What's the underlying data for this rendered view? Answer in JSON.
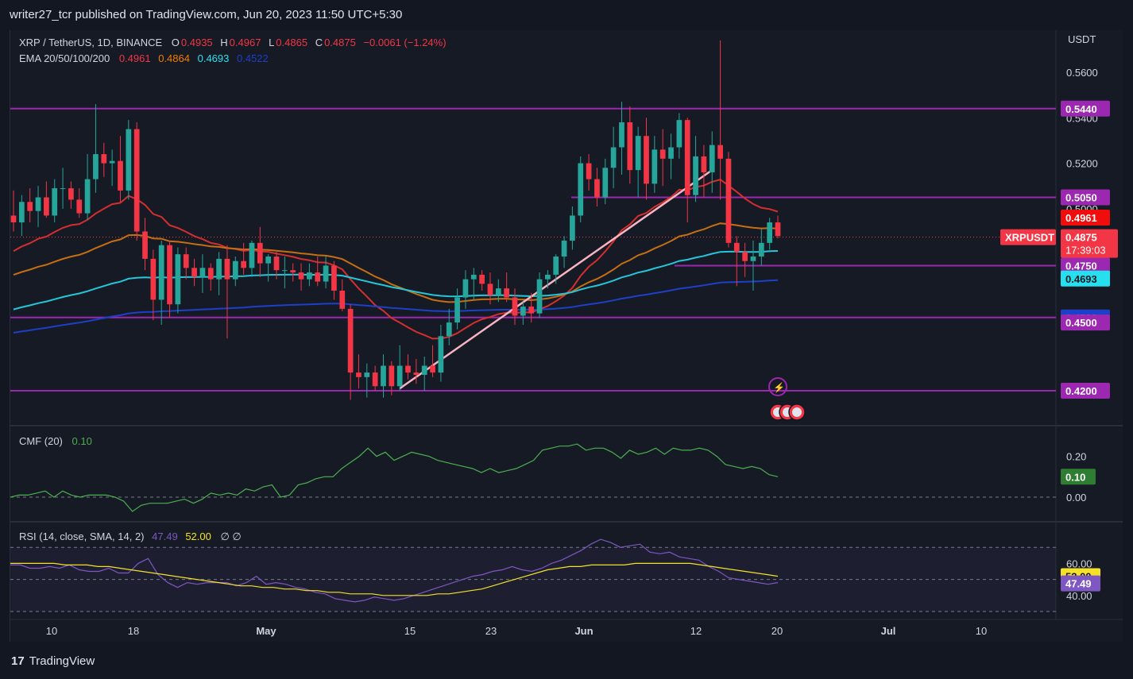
{
  "header": {
    "publish_line": "writer27_tcr published on TradingView.com, Jun 20, 2023 11:50 UTC+5:30"
  },
  "footer": {
    "logo_mark": "17",
    "brand": "TradingView"
  },
  "colors": {
    "up": "#26a69a",
    "down": "#f23645",
    "ema20": "#d32f2f",
    "ema50": "#c46f12",
    "ema100": "#26c6da",
    "ema200": "#1e3fc8",
    "hline": "#9c27b0",
    "cmf": "#4caf50",
    "rsi": "#7e57c2",
    "rsi_sma": "#f5e12a",
    "trend": "#f8b4c0"
  },
  "legend": {
    "symbol": "XRP / TetherUS, 1D, BINANCE",
    "o_label": "O",
    "o": "0.4935",
    "h_label": "H",
    "h": "0.4967",
    "l_label": "L",
    "l": "0.4865",
    "c_label": "C",
    "c": "0.4875",
    "change": "−0.0061 (−1.24%)",
    "ema_label": "EMA 20/50/100/200",
    "ema20": "0.4961",
    "ema50": "0.4864",
    "ema100": "0.4693",
    "ema200": "0.4522",
    "cmf_label": "CMF (20)",
    "cmf_value": "0.10",
    "rsi_label": "RSI (14, close, SMA, 14, 2)",
    "rsi_value": "47.49",
    "rsi_sma_value": "52.00",
    "rsi_extra": "∅ ∅"
  },
  "axis": {
    "currency": "USDT",
    "price_ticks": [
      "0.5600",
      "0.5400",
      "0.5200",
      "0.5000"
    ],
    "cmf_ticks": [
      "0.20",
      "0.00"
    ],
    "rsi_ticks": [
      "60.00",
      "40.00"
    ],
    "x_ticks": [
      "10",
      "18",
      "May",
      "15",
      "23",
      "Jun",
      "12",
      "20",
      "Jul",
      "10"
    ]
  },
  "price_labels": [
    {
      "text": "0.5440",
      "value": 0.544,
      "color": "#9c27b0",
      "fg": "#ffffff"
    },
    {
      "text": "0.5050",
      "value": 0.505,
      "color": "#9c27b0",
      "fg": "#ffffff"
    },
    {
      "text": "0.4961",
      "value": 0.4961,
      "color": "#f20d0d",
      "fg": "#ffffff"
    },
    {
      "text": "0.4864",
      "value": 0.4864,
      "color": "#f57c00",
      "fg": "#ffffff"
    },
    {
      "text": "0.4750",
      "value": 0.475,
      "color": "#9c27b0",
      "fg": "#ffffff"
    },
    {
      "text": "0.4693",
      "value": 0.4693,
      "color": "#26e0ef",
      "fg": "#131722"
    },
    {
      "text": "0.4522",
      "value": 0.4522,
      "color": "#1e3fc8",
      "fg": "#ffffff"
    },
    {
      "text": "0.4500",
      "value": 0.45,
      "color": "#9c27b0",
      "fg": "#ffffff"
    },
    {
      "text": "0.4200",
      "value": 0.42,
      "color": "#9c27b0",
      "fg": "#ffffff"
    }
  ],
  "last_price": {
    "symbol": "XRPUSDT",
    "price": "0.4875",
    "countdown": "17:39:03",
    "value": 0.4875
  },
  "cmf_badge": "0.10",
  "rsi_badges": [
    "52.00",
    "47.49"
  ],
  "chart_data": {
    "type": "candlestick",
    "symbol": "XRP / TetherUS",
    "timeframe": "1D",
    "exchange": "BINANCE",
    "x_tick_labels": [
      "10",
      "18",
      "May",
      "15",
      "23",
      "Jun",
      "12",
      "20",
      "Jul",
      "10"
    ],
    "price_range": [
      0.405,
      0.575
    ],
    "candles": [
      [
        0.497,
        0.508,
        0.49,
        0.494
      ],
      [
        0.494,
        0.506,
        0.488,
        0.503
      ],
      [
        0.503,
        0.509,
        0.494,
        0.499
      ],
      [
        0.499,
        0.51,
        0.492,
        0.505
      ],
      [
        0.505,
        0.512,
        0.496,
        0.497
      ],
      [
        0.497,
        0.513,
        0.494,
        0.509
      ],
      [
        0.509,
        0.518,
        0.5,
        0.509
      ],
      [
        0.509,
        0.512,
        0.5,
        0.504
      ],
      [
        0.504,
        0.509,
        0.496,
        0.498
      ],
      [
        0.498,
        0.524,
        0.495,
        0.513
      ],
      [
        0.513,
        0.546,
        0.507,
        0.524
      ],
      [
        0.524,
        0.529,
        0.514,
        0.52
      ],
      [
        0.52,
        0.526,
        0.51,
        0.521
      ],
      [
        0.521,
        0.532,
        0.503,
        0.508
      ],
      [
        0.508,
        0.539,
        0.504,
        0.535
      ],
      [
        0.535,
        0.538,
        0.486,
        0.49
      ],
      [
        0.49,
        0.496,
        0.473,
        0.478
      ],
      [
        0.478,
        0.482,
        0.451,
        0.46
      ],
      [
        0.46,
        0.486,
        0.449,
        0.484
      ],
      [
        0.484,
        0.486,
        0.452,
        0.458
      ],
      [
        0.458,
        0.483,
        0.454,
        0.48
      ],
      [
        0.48,
        0.483,
        0.469,
        0.474
      ],
      [
        0.474,
        0.478,
        0.466,
        0.47
      ],
      [
        0.47,
        0.48,
        0.463,
        0.474
      ],
      [
        0.474,
        0.476,
        0.464,
        0.469
      ],
      [
        0.469,
        0.481,
        0.462,
        0.478
      ],
      [
        0.478,
        0.484,
        0.443,
        0.469
      ],
      [
        0.469,
        0.479,
        0.466,
        0.477
      ],
      [
        0.477,
        0.485,
        0.471,
        0.474
      ],
      [
        0.474,
        0.486,
        0.47,
        0.485
      ],
      [
        0.485,
        0.492,
        0.47,
        0.476
      ],
      [
        0.476,
        0.48,
        0.468,
        0.479
      ],
      [
        0.479,
        0.481,
        0.469,
        0.473
      ],
      [
        0.473,
        0.479,
        0.465,
        0.473
      ],
      [
        0.473,
        0.476,
        0.468,
        0.472
      ],
      [
        0.472,
        0.476,
        0.464,
        0.469
      ],
      [
        0.469,
        0.476,
        0.466,
        0.472
      ],
      [
        0.472,
        0.479,
        0.466,
        0.468
      ],
      [
        0.468,
        0.479,
        0.465,
        0.475
      ],
      [
        0.475,
        0.477,
        0.46,
        0.464
      ],
      [
        0.464,
        0.469,
        0.455,
        0.456
      ],
      [
        0.456,
        0.458,
        0.416,
        0.428
      ],
      [
        0.428,
        0.436,
        0.421,
        0.426
      ],
      [
        0.426,
        0.432,
        0.417,
        0.428
      ],
      [
        0.428,
        0.431,
        0.42,
        0.422
      ],
      [
        0.422,
        0.436,
        0.417,
        0.431
      ],
      [
        0.431,
        0.433,
        0.418,
        0.422
      ],
      [
        0.422,
        0.44,
        0.42,
        0.431
      ],
      [
        0.431,
        0.436,
        0.425,
        0.428
      ],
      [
        0.428,
        0.434,
        0.423,
        0.427
      ],
      [
        0.427,
        0.435,
        0.42,
        0.431
      ],
      [
        0.431,
        0.44,
        0.426,
        0.428
      ],
      [
        0.428,
        0.449,
        0.424,
        0.444
      ],
      [
        0.444,
        0.456,
        0.44,
        0.45
      ],
      [
        0.45,
        0.465,
        0.447,
        0.461
      ],
      [
        0.461,
        0.473,
        0.456,
        0.469
      ],
      [
        0.469,
        0.474,
        0.46,
        0.471
      ],
      [
        0.471,
        0.473,
        0.464,
        0.467
      ],
      [
        0.467,
        0.472,
        0.458,
        0.462
      ],
      [
        0.462,
        0.469,
        0.459,
        0.465
      ],
      [
        0.465,
        0.472,
        0.459,
        0.461
      ],
      [
        0.461,
        0.465,
        0.449,
        0.453
      ],
      [
        0.453,
        0.459,
        0.449,
        0.457
      ],
      [
        0.457,
        0.463,
        0.45,
        0.454
      ],
      [
        0.454,
        0.472,
        0.452,
        0.469
      ],
      [
        0.469,
        0.473,
        0.465,
        0.471
      ],
      [
        0.471,
        0.48,
        0.467,
        0.479
      ],
      [
        0.479,
        0.488,
        0.474,
        0.486
      ],
      [
        0.486,
        0.501,
        0.482,
        0.497
      ],
      [
        0.497,
        0.523,
        0.494,
        0.52
      ],
      [
        0.52,
        0.524,
        0.508,
        0.513
      ],
      [
        0.513,
        0.518,
        0.501,
        0.505
      ],
      [
        0.505,
        0.522,
        0.502,
        0.518
      ],
      [
        0.518,
        0.536,
        0.509,
        0.527
      ],
      [
        0.527,
        0.547,
        0.515,
        0.538
      ],
      [
        0.538,
        0.545,
        0.511,
        0.517
      ],
      [
        0.517,
        0.536,
        0.505,
        0.532
      ],
      [
        0.532,
        0.54,
        0.504,
        0.511
      ],
      [
        0.511,
        0.532,
        0.507,
        0.526
      ],
      [
        0.526,
        0.535,
        0.51,
        0.522
      ],
      [
        0.522,
        0.533,
        0.513,
        0.527
      ],
      [
        0.527,
        0.542,
        0.522,
        0.539
      ],
      [
        0.539,
        0.54,
        0.494,
        0.506
      ],
      [
        0.506,
        0.532,
        0.503,
        0.523
      ],
      [
        0.523,
        0.528,
        0.505,
        0.516
      ],
      [
        0.516,
        0.534,
        0.507,
        0.528
      ],
      [
        0.528,
        0.574,
        0.504,
        0.522
      ],
      [
        0.522,
        0.525,
        0.483,
        0.485
      ],
      [
        0.485,
        0.488,
        0.466,
        0.481
      ],
      [
        0.481,
        0.485,
        0.47,
        0.477
      ],
      [
        0.477,
        0.486,
        0.464,
        0.479
      ],
      [
        0.479,
        0.491,
        0.475,
        0.485
      ],
      [
        0.485,
        0.496,
        0.482,
        0.494
      ],
      [
        0.494,
        0.497,
        0.487,
        0.488
      ]
    ],
    "horizontal_levels": [
      0.544,
      0.505,
      0.475,
      0.4522,
      0.42
    ],
    "series": [
      {
        "name": "EMA 20",
        "last": 0.4961
      },
      {
        "name": "EMA 50",
        "last": 0.4864
      },
      {
        "name": "EMA 100",
        "last": 0.4693
      },
      {
        "name": "EMA 200",
        "last": 0.4522
      }
    ],
    "cmf": {
      "name": "CMF (20)",
      "range": [
        -0.07,
        0.28
      ],
      "values": [
        0.0,
        0.01,
        0.01,
        0.02,
        0.03,
        0.0,
        0.03,
        0.01,
        0.0,
        0.01,
        0.01,
        0.01,
        0.0,
        -0.02,
        -0.07,
        -0.04,
        -0.03,
        -0.03,
        -0.03,
        -0.02,
        -0.01,
        -0.03,
        -0.01,
        0.02,
        0.01,
        0.02,
        0.01,
        0.04,
        0.03,
        0.05,
        0.06,
        0.0,
        0.01,
        0.06,
        0.07,
        0.09,
        0.1,
        0.1,
        0.14,
        0.17,
        0.2,
        0.24,
        0.2,
        0.22,
        0.18,
        0.2,
        0.22,
        0.21,
        0.2,
        0.18,
        0.17,
        0.16,
        0.15,
        0.14,
        0.12,
        0.14,
        0.12,
        0.13,
        0.14,
        0.16,
        0.18,
        0.23,
        0.24,
        0.25,
        0.25,
        0.26,
        0.23,
        0.24,
        0.24,
        0.22,
        0.19,
        0.23,
        0.21,
        0.22,
        0.24,
        0.21,
        0.24,
        0.23,
        0.23,
        0.24,
        0.23,
        0.2,
        0.16,
        0.15,
        0.14,
        0.15,
        0.14,
        0.11,
        0.1
      ]
    },
    "rsi": {
      "name": "RSI (14, close, SMA, 14, 2)",
      "range": [
        30,
        80
      ],
      "values": [
        59,
        59,
        57,
        57,
        58,
        57,
        59,
        56,
        55,
        55,
        57,
        54,
        54,
        60,
        63,
        53,
        48,
        45,
        48,
        47,
        48,
        48,
        48,
        46,
        48,
        52,
        47,
        48,
        47,
        45,
        44,
        42,
        41,
        38,
        37,
        36,
        37,
        39,
        38,
        37,
        38,
        40,
        42,
        44,
        46,
        48,
        50,
        52,
        53,
        55,
        56,
        58,
        56,
        55,
        57,
        60,
        62,
        65,
        68,
        72,
        75,
        73,
        70,
        71,
        72,
        67,
        66,
        67,
        64,
        63,
        62,
        58,
        55,
        51,
        50,
        49,
        48,
        47,
        48
      ],
      "sma": [
        60,
        60,
        60,
        60,
        60,
        59,
        59,
        59,
        58,
        58,
        57,
        56,
        55,
        54,
        53,
        52,
        51,
        50,
        49,
        48,
        47,
        46,
        46,
        45,
        45,
        44,
        44,
        43,
        43,
        42,
        42,
        41,
        41,
        41,
        40,
        40,
        40,
        40,
        40,
        41,
        41,
        42,
        43,
        44,
        46,
        48,
        50,
        52,
        54,
        56,
        57,
        58,
        58,
        59,
        59,
        59,
        59,
        60,
        60,
        60,
        60,
        60,
        60,
        59,
        58,
        57,
        56,
        55,
        54,
        53,
        52
      ]
    }
  }
}
